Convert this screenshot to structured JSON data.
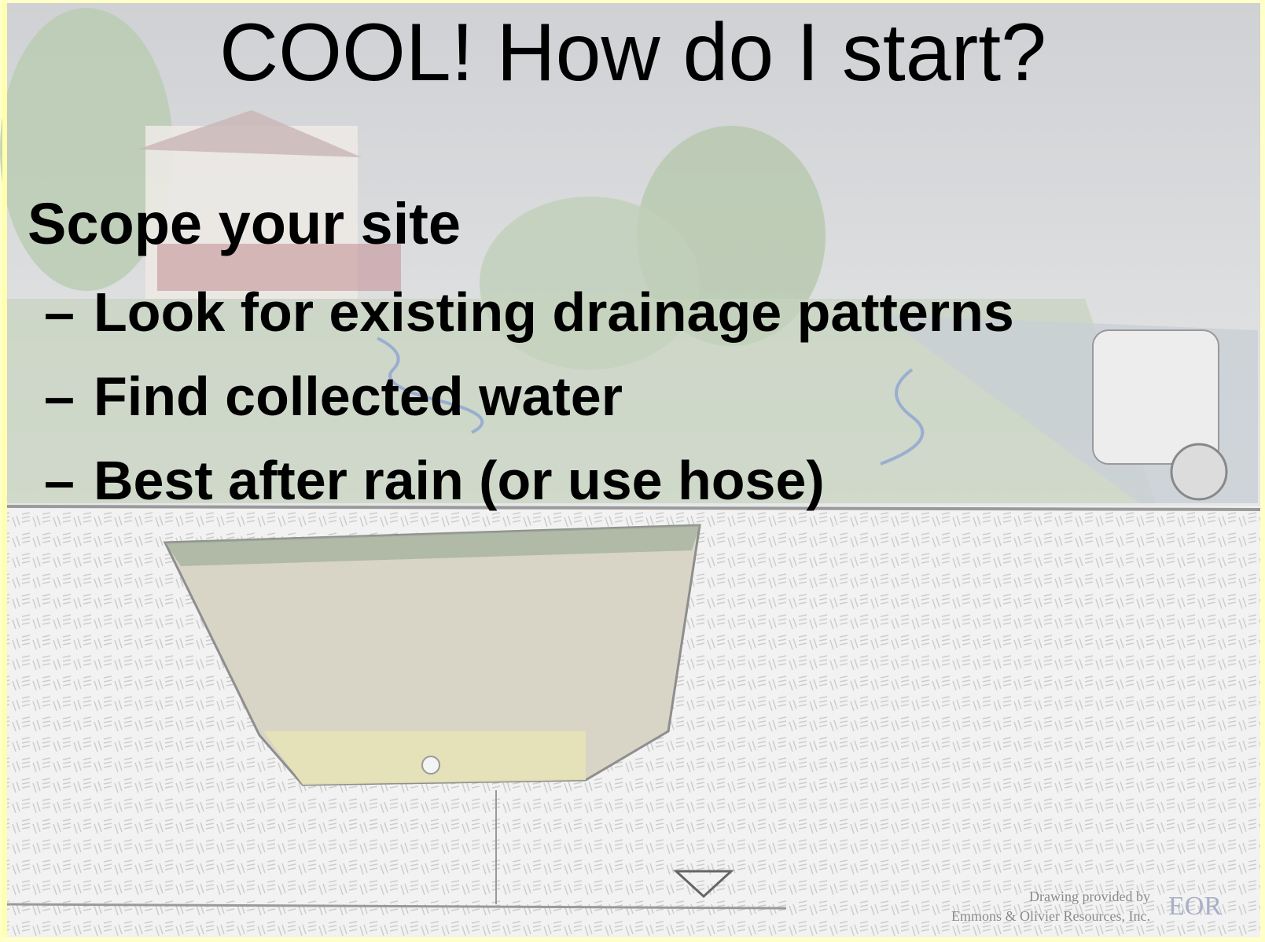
{
  "slide": {
    "title": "COOL! How do I start?",
    "heading": "Scope your site",
    "bullets": [
      {
        "marker": "–",
        "text": "Look for existing drainage patterns"
      },
      {
        "marker": "–",
        "text": "Find collected water"
      },
      {
        "marker": "–",
        "text": "Best after rain (or use hose)"
      }
    ],
    "credit": {
      "line1": "Drawing provided by",
      "line2": "Emmons & Olivier Resources, Inc.",
      "logo": "EOR"
    }
  }
}
